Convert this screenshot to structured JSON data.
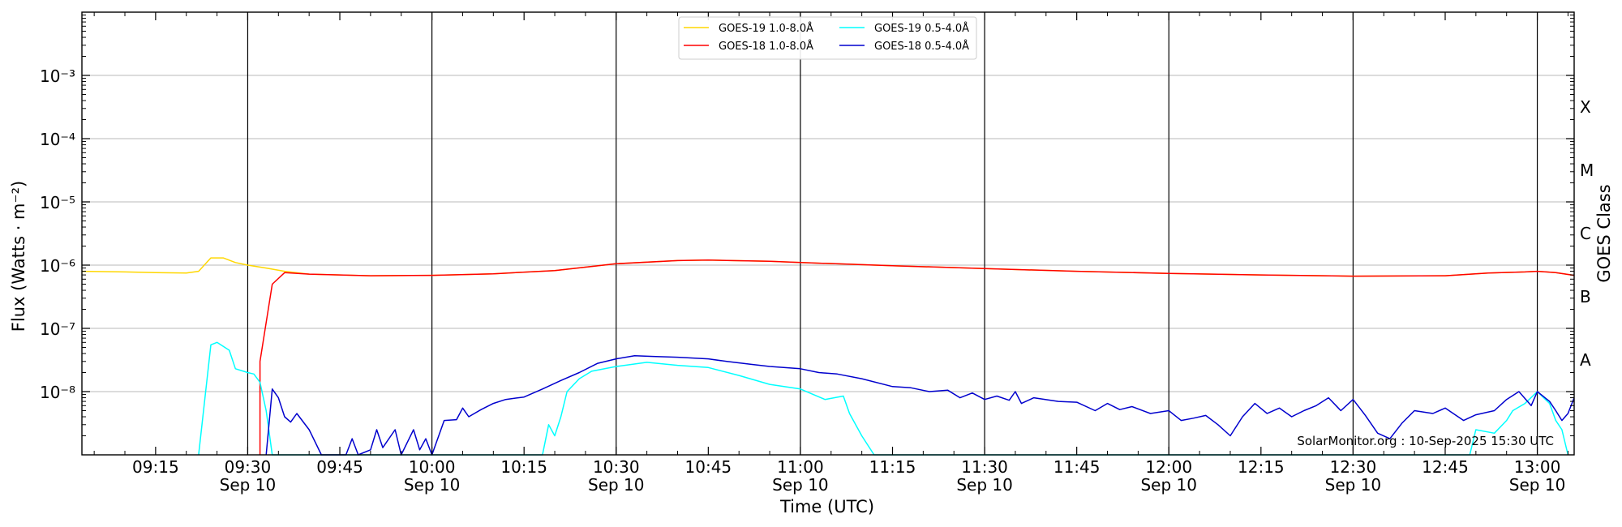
{
  "chart_data": {
    "type": "line",
    "ylabel": "Flux (Watts · m⁻²)",
    "xlabel": "Time (UTC)",
    "y2label": "GOES Class",
    "credit": "SolarMonitor.org : 10-Sep-2025 15:30 UTC",
    "yscale": "log",
    "ylim": [
      1e-09,
      0.01
    ],
    "xlim": [
      "09:03",
      "13:06"
    ],
    "x_ticks": [
      {
        "time": "09:15",
        "date": ""
      },
      {
        "time": "09:30",
        "date": "Sep 10"
      },
      {
        "time": "09:45",
        "date": ""
      },
      {
        "time": "10:00",
        "date": "Sep 10"
      },
      {
        "time": "10:15",
        "date": ""
      },
      {
        "time": "10:30",
        "date": "Sep 10"
      },
      {
        "time": "10:45",
        "date": ""
      },
      {
        "time": "11:00",
        "date": "Sep 10"
      },
      {
        "time": "11:15",
        "date": ""
      },
      {
        "time": "11:30",
        "date": "Sep 10"
      },
      {
        "time": "11:45",
        "date": ""
      },
      {
        "time": "12:00",
        "date": "Sep 10"
      },
      {
        "time": "12:15",
        "date": ""
      },
      {
        "time": "12:30",
        "date": "Sep 10"
      },
      {
        "time": "12:45",
        "date": ""
      },
      {
        "time": "13:00",
        "date": "Sep 10"
      }
    ],
    "y_ticks": [
      {
        "value": 1e-08,
        "label": "10⁻⁸"
      },
      {
        "value": 1e-07,
        "label": "10⁻⁷"
      },
      {
        "value": 1e-06,
        "label": "10⁻⁶"
      },
      {
        "value": 1e-05,
        "label": "10⁻⁵"
      },
      {
        "value": 0.0001,
        "label": "10⁻⁴"
      },
      {
        "value": 0.001,
        "label": "10⁻³"
      }
    ],
    "goes_classes": [
      {
        "label": "A",
        "value": 3.16e-08
      },
      {
        "label": "B",
        "value": 3.16e-07
      },
      {
        "label": "C",
        "value": 3.16e-06
      },
      {
        "label": "M",
        "value": 3.16e-05
      },
      {
        "label": "X",
        "value": 0.000316
      }
    ],
    "vertical_lines": [
      "09:30",
      "10:00",
      "10:30",
      "11:00",
      "11:30",
      "12:00",
      "12:30",
      "13:00"
    ],
    "grid": true,
    "legend": "top-center",
    "series": [
      {
        "name": "GOES-19 1.0-8.0Å",
        "color": "#ffd700",
        "points": [
          [
            "09:03",
            8e-07
          ],
          [
            "09:10",
            7.8e-07
          ],
          [
            "09:15",
            7.6e-07
          ],
          [
            "09:20",
            7.5e-07
          ],
          [
            "09:22",
            8e-07
          ],
          [
            "09:24",
            1.3e-06
          ],
          [
            "09:26",
            1.3e-06
          ],
          [
            "09:28",
            1.1e-06
          ],
          [
            "09:30",
            1e-06
          ],
          [
            "09:33",
            9e-07
          ],
          [
            "09:36",
            8e-07
          ],
          [
            "09:40",
            7.2e-07
          ],
          [
            "09:50",
            6.8e-07
          ],
          [
            "10:00",
            6.9e-07
          ],
          [
            "10:10",
            7.3e-07
          ],
          [
            "10:20",
            8.2e-07
          ],
          [
            "10:30",
            1.05e-06
          ],
          [
            "10:40",
            1.18e-06
          ],
          [
            "10:45",
            1.2e-06
          ],
          [
            "10:55",
            1.15e-06
          ],
          [
            "11:00",
            1.1e-06
          ],
          [
            "11:15",
            9.8e-07
          ],
          [
            "11:30",
            8.8e-07
          ],
          [
            "11:45",
            8e-07
          ],
          [
            "12:00",
            7.4e-07
          ],
          [
            "12:15",
            7e-07
          ],
          [
            "12:30",
            6.7e-07
          ],
          [
            "12:45",
            6.8e-07
          ],
          [
            "12:52",
            7.5e-07
          ],
          [
            "12:58",
            7.8e-07
          ],
          [
            "13:00",
            8e-07
          ],
          [
            "13:03",
            7.6e-07
          ],
          [
            "13:06",
            6.9e-07
          ]
        ]
      },
      {
        "name": "GOES-18 1.0-8.0Å",
        "color": "#ff0000",
        "points": [
          [
            "09:32",
            1e-09
          ],
          [
            "09:32",
            3e-08
          ],
          [
            "09:34",
            5e-07
          ],
          [
            "09:36",
            7.6e-07
          ],
          [
            "09:40",
            7.2e-07
          ],
          [
            "09:50",
            6.8e-07
          ],
          [
            "10:00",
            6.9e-07
          ],
          [
            "10:10",
            7.3e-07
          ],
          [
            "10:20",
            8.2e-07
          ],
          [
            "10:30",
            1.05e-06
          ],
          [
            "10:40",
            1.18e-06
          ],
          [
            "10:45",
            1.2e-06
          ],
          [
            "10:55",
            1.15e-06
          ],
          [
            "11:00",
            1.1e-06
          ],
          [
            "11:15",
            9.8e-07
          ],
          [
            "11:30",
            8.8e-07
          ],
          [
            "11:45",
            8e-07
          ],
          [
            "12:00",
            7.4e-07
          ],
          [
            "12:15",
            7e-07
          ],
          [
            "12:30",
            6.7e-07
          ],
          [
            "12:45",
            6.8e-07
          ],
          [
            "12:52",
            7.5e-07
          ],
          [
            "12:58",
            7.8e-07
          ],
          [
            "13:00",
            8e-07
          ],
          [
            "13:03",
            7.6e-07
          ],
          [
            "13:06",
            6.9e-07
          ]
        ]
      },
      {
        "name": "GOES-19 0.5-4.0Å",
        "color": "#00ffff",
        "points": [
          [
            "09:22",
            1e-09
          ],
          [
            "09:24",
            5.5e-08
          ],
          [
            "09:25",
            6e-08
          ],
          [
            "09:27",
            4.5e-08
          ],
          [
            "09:28",
            2.3e-08
          ],
          [
            "09:30",
            2e-08
          ],
          [
            "09:31",
            1.9e-08
          ],
          [
            "09:32",
            1.4e-08
          ],
          [
            "09:33",
            5e-09
          ],
          [
            "09:34",
            1e-09
          ],
          [
            "10:18",
            1e-09
          ],
          [
            "10:19",
            3e-09
          ],
          [
            "10:20",
            2e-09
          ],
          [
            "10:21",
            4e-09
          ],
          [
            "10:22",
            1e-08
          ],
          [
            "10:24",
            1.6e-08
          ],
          [
            "10:26",
            2.1e-08
          ],
          [
            "10:30",
            2.5e-08
          ],
          [
            "10:35",
            2.9e-08
          ],
          [
            "10:40",
            2.6e-08
          ],
          [
            "10:45",
            2.4e-08
          ],
          [
            "10:50",
            1.8e-08
          ],
          [
            "10:55",
            1.3e-08
          ],
          [
            "11:00",
            1.1e-08
          ],
          [
            "11:04",
            7.5e-09
          ],
          [
            "11:07",
            8.5e-09
          ],
          [
            "11:08",
            4.5e-09
          ],
          [
            "11:10",
            2e-09
          ],
          [
            "11:12",
            1e-09
          ],
          [
            "12:49",
            1e-09
          ],
          [
            "12:50",
            2.5e-09
          ],
          [
            "12:53",
            2.2e-09
          ],
          [
            "12:55",
            3.5e-09
          ],
          [
            "12:56",
            5e-09
          ],
          [
            "12:58",
            6.5e-09
          ],
          [
            "13:00",
            1e-08
          ],
          [
            "13:02",
            6.5e-09
          ],
          [
            "13:03",
            3.5e-09
          ],
          [
            "13:04",
            2.5e-09
          ],
          [
            "13:05",
            1e-09
          ]
        ]
      },
      {
        "name": "GOES-18 0.5-4.0Å",
        "color": "#0000cd",
        "points": [
          [
            "09:33",
            1e-09
          ],
          [
            "09:34",
            1.1e-08
          ],
          [
            "09:35",
            8e-09
          ],
          [
            "09:36",
            4e-09
          ],
          [
            "09:37",
            3.3e-09
          ],
          [
            "09:38",
            4.5e-09
          ],
          [
            "09:40",
            2.5e-09
          ],
          [
            "09:42",
            1e-09
          ],
          [
            "09:46",
            1e-09
          ],
          [
            "09:47",
            1.8e-09
          ],
          [
            "09:48",
            1e-09
          ],
          [
            "09:50",
            1.2e-09
          ],
          [
            "09:51",
            2.5e-09
          ],
          [
            "09:52",
            1.3e-09
          ],
          [
            "09:54",
            2.5e-09
          ],
          [
            "09:55",
            1e-09
          ],
          [
            "09:57",
            2.5e-09
          ],
          [
            "09:58",
            1.2e-09
          ],
          [
            "09:59",
            1.8e-09
          ],
          [
            "10:00",
            1e-09
          ],
          [
            "10:02",
            3.5e-09
          ],
          [
            "10:04",
            3.6e-09
          ],
          [
            "10:05",
            5.5e-09
          ],
          [
            "10:06",
            4e-09
          ],
          [
            "10:08",
            5.2e-09
          ],
          [
            "10:10",
            6.5e-09
          ],
          [
            "10:12",
            7.5e-09
          ],
          [
            "10:15",
            8.2e-09
          ],
          [
            "10:18",
            1.1e-08
          ],
          [
            "10:21",
            1.5e-08
          ],
          [
            "10:24",
            2e-08
          ],
          [
            "10:27",
            2.8e-08
          ],
          [
            "10:30",
            3.3e-08
          ],
          [
            "10:33",
            3.7e-08
          ],
          [
            "10:36",
            3.6e-08
          ],
          [
            "10:40",
            3.5e-08
          ],
          [
            "10:45",
            3.3e-08
          ],
          [
            "10:48",
            3e-08
          ],
          [
            "10:52",
            2.7e-08
          ],
          [
            "10:55",
            2.5e-08
          ],
          [
            "11:00",
            2.3e-08
          ],
          [
            "11:03",
            2e-08
          ],
          [
            "11:06",
            1.9e-08
          ],
          [
            "11:10",
            1.6e-08
          ],
          [
            "11:15",
            1.2e-08
          ],
          [
            "11:18",
            1.15e-08
          ],
          [
            "11:21",
            1e-08
          ],
          [
            "11:24",
            1.05e-08
          ],
          [
            "11:26",
            8e-09
          ],
          [
            "11:28",
            9.5e-09
          ],
          [
            "11:30",
            7.5e-09
          ],
          [
            "11:32",
            8.5e-09
          ],
          [
            "11:34",
            7.3e-09
          ],
          [
            "11:35",
            1e-08
          ],
          [
            "11:36",
            6.5e-09
          ],
          [
            "11:38",
            8e-09
          ],
          [
            "11:42",
            7e-09
          ],
          [
            "11:45",
            6.8e-09
          ],
          [
            "11:48",
            5e-09
          ],
          [
            "11:50",
            6.5e-09
          ],
          [
            "11:52",
            5.2e-09
          ],
          [
            "11:54",
            5.8e-09
          ],
          [
            "11:57",
            4.5e-09
          ],
          [
            "12:00",
            5e-09
          ],
          [
            "12:02",
            3.5e-09
          ],
          [
            "12:04",
            3.8e-09
          ],
          [
            "12:06",
            4.2e-09
          ],
          [
            "12:08",
            3e-09
          ],
          [
            "12:10",
            2e-09
          ],
          [
            "12:12",
            4e-09
          ],
          [
            "12:14",
            6.5e-09
          ],
          [
            "12:16",
            4.5e-09
          ],
          [
            "12:18",
            5.5e-09
          ],
          [
            "12:20",
            4e-09
          ],
          [
            "12:22",
            5e-09
          ],
          [
            "12:24",
            6e-09
          ],
          [
            "12:26",
            8e-09
          ],
          [
            "12:28",
            5e-09
          ],
          [
            "12:30",
            7.5e-09
          ],
          [
            "12:32",
            4.2e-09
          ],
          [
            "12:34",
            2.2e-09
          ],
          [
            "12:36",
            1.8e-09
          ],
          [
            "12:38",
            3.2e-09
          ],
          [
            "12:40",
            5e-09
          ],
          [
            "12:43",
            4.5e-09
          ],
          [
            "12:45",
            5.5e-09
          ],
          [
            "12:48",
            3.5e-09
          ],
          [
            "12:50",
            4.3e-09
          ],
          [
            "12:53",
            5e-09
          ],
          [
            "12:55",
            7.5e-09
          ],
          [
            "12:57",
            1e-08
          ],
          [
            "12:59",
            6e-09
          ],
          [
            "13:00",
            1e-08
          ],
          [
            "13:02",
            7e-09
          ],
          [
            "13:03",
            5e-09
          ],
          [
            "13:04",
            3.5e-09
          ],
          [
            "13:05",
            4.5e-09
          ],
          [
            "13:06",
            8e-09
          ]
        ]
      }
    ]
  }
}
